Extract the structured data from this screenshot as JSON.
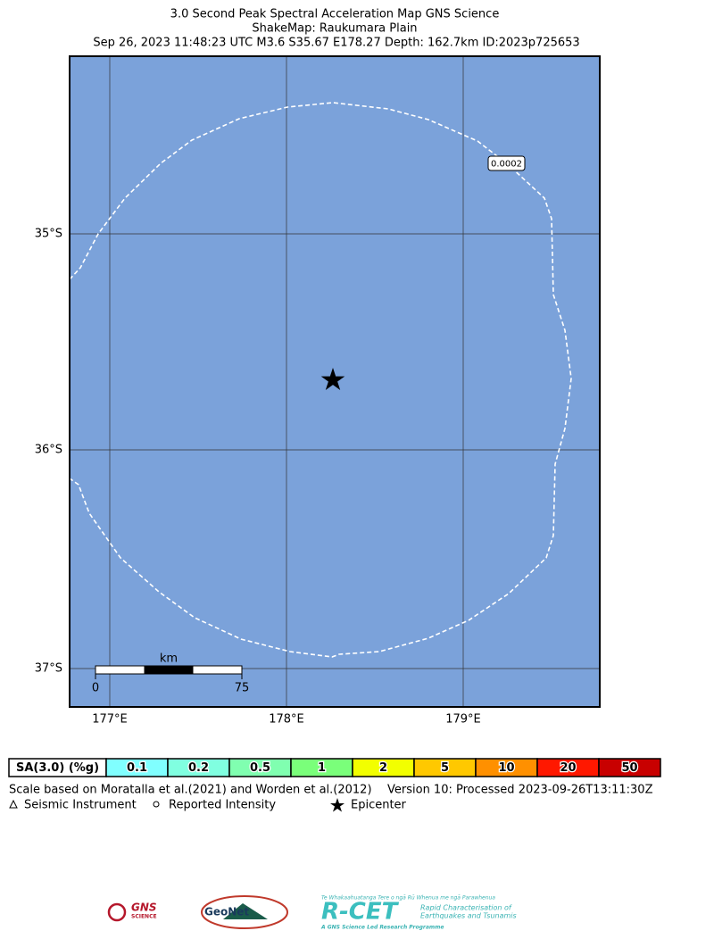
{
  "header": {
    "lines": [
      "3.0 Second Peak Spectral Acceleration Map GNS Science",
      "ShakeMap: Raukumara Plain",
      "Sep 26, 2023 11:48:23 UTC M3.6 S35.67 E178.27 Depth: 162.7km ID:2023p725653"
    ]
  },
  "map": {
    "lat_labels": [
      "35°S",
      "36°S",
      "37°S"
    ],
    "lon_labels": [
      "177°E",
      "178°E",
      "179°E"
    ],
    "contour_label": "0.0002",
    "scale_bar": {
      "unit": "km",
      "start": "0",
      "end": "75"
    }
  },
  "legend": {
    "label": "SA(3.0) (%g)",
    "bins": [
      "0.1",
      "0.2",
      "0.5",
      "1",
      "2",
      "5",
      "10",
      "20",
      "50"
    ],
    "colors": [
      "#80ffff",
      "#80ffe0",
      "#80ffb0",
      "#7aff7a",
      "#f2ff00",
      "#ffc800",
      "#ff9000",
      "#ff1800",
      "#c80000"
    ]
  },
  "footer": {
    "scale_note": "Scale based on Moratalla et al.(2021) and Worden et al.(2012)",
    "version": "Version 10: Processed 2023-09-26T13:11:30Z",
    "symbols": [
      "Seismic Instrument",
      "Reported Intensity",
      "Epicenter"
    ]
  },
  "logos": {
    "gns": "GNS",
    "gns_sub": "SCIENCE",
    "geonet": "GeoNet",
    "rcet": "R-CET",
    "rcet_maori": "Te Whakaahuatanga Tere o ngā Rū Whenua me ngā Parawhenua",
    "rcet_sub1": "Rapid Characterisation of",
    "rcet_sub2": "Earthquakes and Tsunamis",
    "rcet_tag": "A GNS Science Led Research Programme"
  }
}
